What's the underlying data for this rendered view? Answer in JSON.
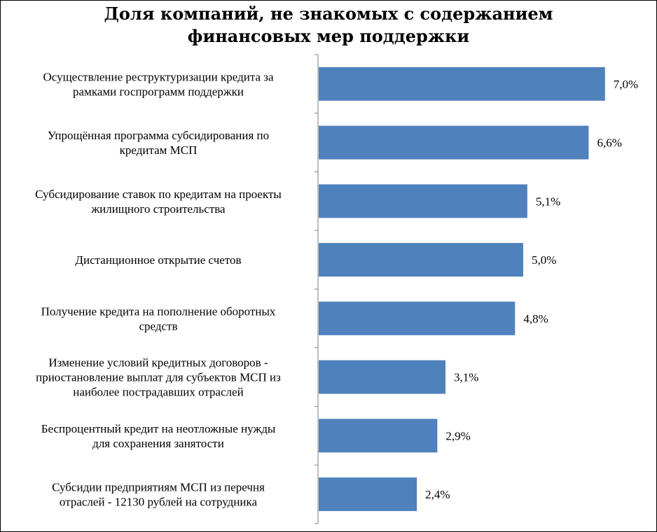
{
  "chart_data": {
    "type": "bar",
    "orientation": "horizontal",
    "title_lines": [
      "Доля компаний, не знакомых с содержанием",
      "финансовых мер поддержки"
    ],
    "categories": [
      [
        "Осуществление реструктуризации кредита за",
        "рамками госпрограмм поддержки"
      ],
      [
        "Упрощённая программа субсидирования по",
        "кредитам МСП"
      ],
      [
        "Субсидирование ставок по кредитам на проекты",
        "жилищного строительства"
      ],
      [
        "Дистанционное открытие счетов"
      ],
      [
        "Получение кредита на пополнение оборотных",
        "средств"
      ],
      [
        "Изменение условий кредитных договоров -",
        "приостановление выплат для субъектов МСП из",
        "наиболее пострадавших отраслей"
      ],
      [
        "Беспроцентный кредит на неотложные нужды",
        "для сохранения занятости"
      ],
      [
        "Субсидии предприятиям МСП из перечня",
        "отраслей - 12130 рублей на сотрудника"
      ]
    ],
    "values": [
      7.0,
      6.6,
      5.1,
      5.0,
      4.8,
      3.1,
      2.9,
      2.4
    ],
    "value_labels": [
      "7,0%",
      "6,6%",
      "5,1%",
      "5,0%",
      "4,8%",
      "3,1%",
      "2,9%",
      "2,4%"
    ],
    "xlim": [
      0,
      7.5
    ],
    "bar_color": "#4f81bd",
    "grid": false,
    "legend": "none"
  }
}
